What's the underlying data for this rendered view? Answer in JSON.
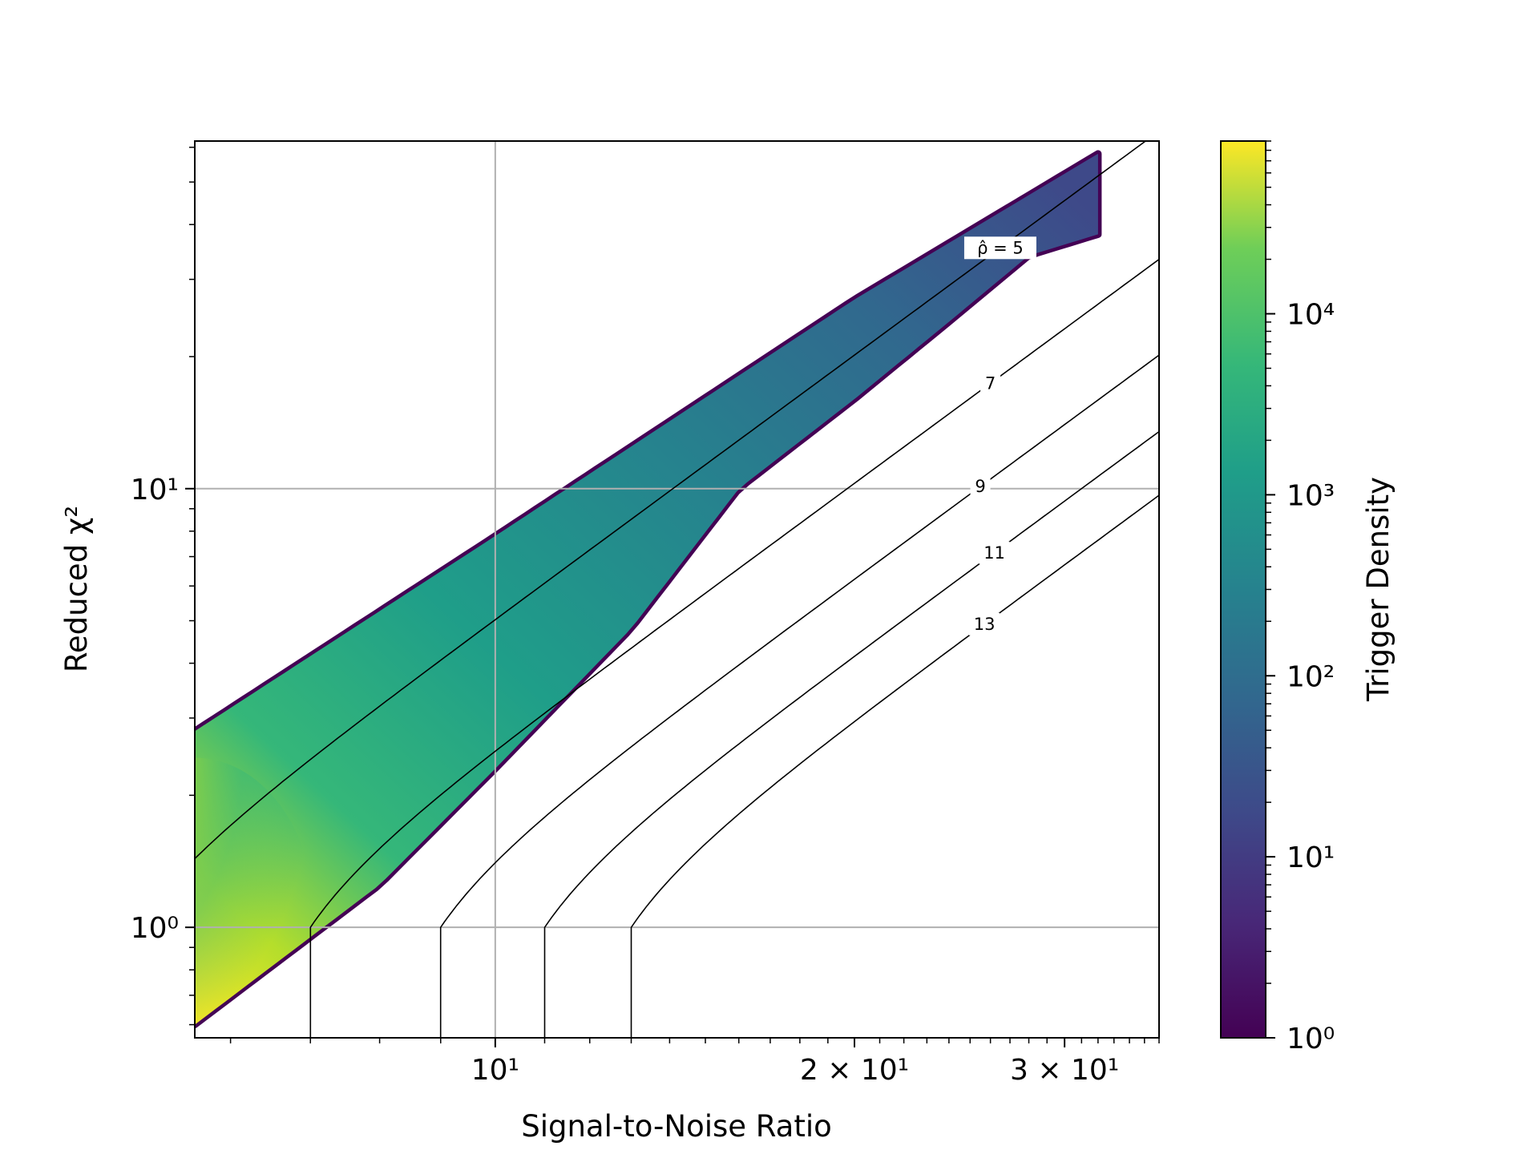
{
  "chart_data": {
    "type": "heatmap",
    "title": "",
    "xlabel": "Signal-to-Noise Ratio",
    "ylabel": "Reduced χ²",
    "xscale": "log",
    "yscale": "log",
    "xlim": [
      5.6,
      36
    ],
    "ylim": [
      0.56,
      62
    ],
    "x_ticks": [
      {
        "value": 10,
        "label": "10¹"
      },
      {
        "value": 20,
        "label": "2 × 10¹"
      },
      {
        "value": 30,
        "label": "3 × 10¹"
      }
    ],
    "y_ticks": [
      {
        "value": 1,
        "label": "10⁰"
      },
      {
        "value": 10,
        "label": "10¹"
      }
    ],
    "grid": true,
    "colorbar": {
      "label": "Trigger Density",
      "scale": "log",
      "range": [
        1,
        90000
      ],
      "colormap": "viridis",
      "ticks": [
        {
          "value": 1,
          "label": "10⁰"
        },
        {
          "value": 10,
          "label": "10¹"
        },
        {
          "value": 100,
          "label": "10²"
        },
        {
          "value": 1000,
          "label": "10³"
        },
        {
          "value": 10000,
          "label": "10⁴"
        }
      ]
    },
    "density_region": {
      "upper_edge": [
        [
          5.6,
          2.8
        ],
        [
          10,
          7.8
        ],
        [
          20,
          27
        ],
        [
          32,
          58
        ]
      ],
      "lower_edge": [
        [
          5.6,
          0.6
        ],
        [
          8,
          1.25
        ],
        [
          10,
          2.3
        ],
        [
          13,
          4.8
        ],
        [
          16,
          10
        ],
        [
          20,
          16
        ],
        [
          24,
          24
        ],
        [
          28,
          34
        ],
        [
          32,
          38
        ]
      ],
      "peak": [
        [
          5.6,
          1.05
        ]
      ]
    },
    "contours": [
      {
        "label": "ρ̂ = 5",
        "rho": 5
      },
      {
        "label": "7",
        "rho": 7
      },
      {
        "label": "9",
        "rho": 9
      },
      {
        "label": "11",
        "rho": 11
      },
      {
        "label": "13",
        "rho": 13
      }
    ]
  }
}
